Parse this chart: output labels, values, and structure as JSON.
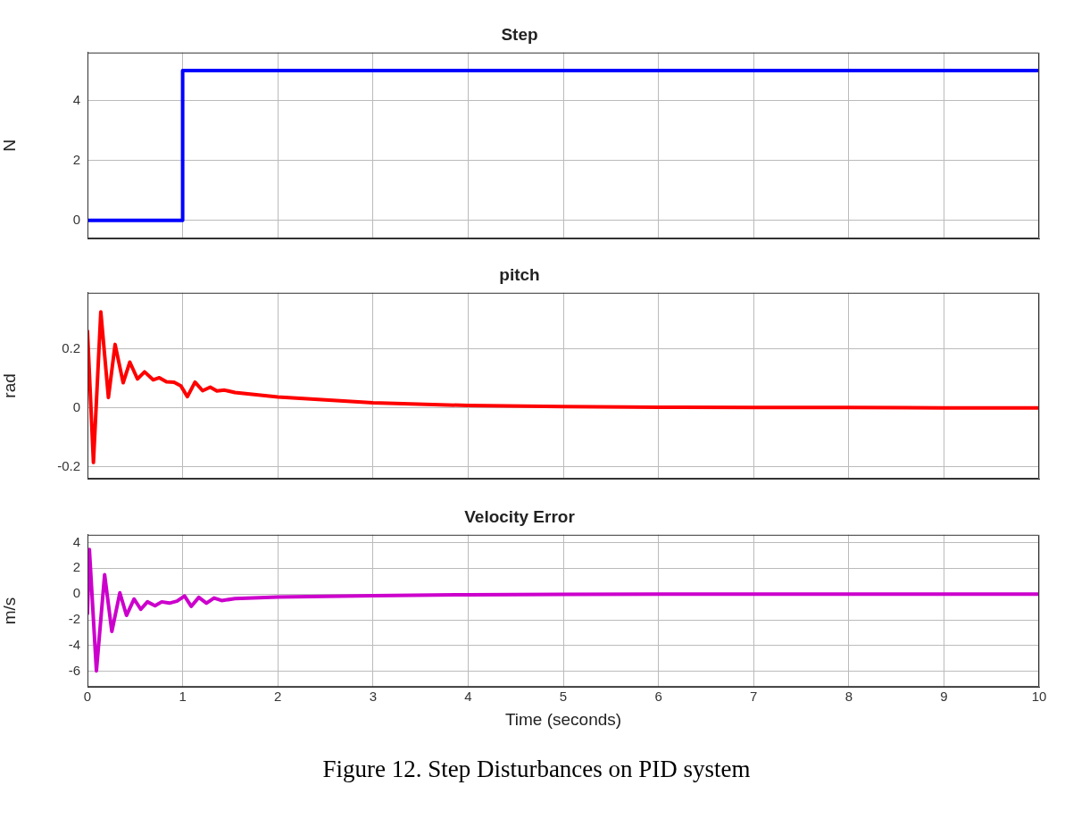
{
  "chart_data": [
    {
      "type": "step",
      "title": "Step",
      "ylabel": "N",
      "xlim": [
        0,
        10
      ],
      "xticks": [
        0,
        1,
        2,
        3,
        4,
        5,
        6,
        7,
        8,
        9,
        10
      ],
      "ylim": [
        -0.6,
        5.6
      ],
      "yticks": [
        0,
        2,
        4
      ],
      "grid": true,
      "legend": false,
      "tick_labels": "y",
      "series": [
        {
          "color": "#0000ff",
          "x": [
            0,
            1,
            10
          ],
          "values": [
            0,
            5,
            5
          ]
        }
      ]
    },
    {
      "type": "line",
      "title": "pitch",
      "ylabel": "rad",
      "xlim": [
        0,
        10
      ],
      "xticks": [
        0,
        1,
        2,
        3,
        4,
        5,
        6,
        7,
        8,
        9,
        10
      ],
      "ylim": [
        -0.24,
        0.39
      ],
      "yticks": [
        -0.2,
        0,
        0.2
      ],
      "grid": true,
      "legend": false,
      "tick_labels": "y",
      "series": [
        {
          "color": "#ff0000",
          "x": [
            0,
            0.0625,
            0.14,
            0.22,
            0.29,
            0.375,
            0.445,
            0.525,
            0.6,
            0.69,
            0.755,
            0.83,
            0.91,
            0.98,
            1.05,
            1.13,
            1.21,
            1.29,
            1.36,
            1.44,
            1.55,
            2,
            3,
            4,
            5,
            6,
            7,
            8,
            9,
            10
          ],
          "values": [
            0.26,
            -0.185,
            0.325,
            0.035,
            0.215,
            0.085,
            0.155,
            0.098,
            0.122,
            0.095,
            0.102,
            0.088,
            0.087,
            0.075,
            0.038,
            0.087,
            0.058,
            0.07,
            0.057,
            0.06,
            0.052,
            0.037,
            0.017,
            0.008,
            0.004,
            0.002,
            0.001,
            0.001,
            0,
            0
          ]
        }
      ]
    },
    {
      "type": "line",
      "title": "Velocity Error",
      "ylabel": "m/s",
      "xlabel": "Time (seconds)",
      "xlim": [
        0,
        10
      ],
      "xticks": [
        0,
        1,
        2,
        3,
        4,
        5,
        6,
        7,
        8,
        9,
        10
      ],
      "ylim": [
        -7.2,
        4.6
      ],
      "yticks": [
        -6,
        -4,
        -2,
        0,
        2,
        4
      ],
      "grid": true,
      "legend": false,
      "annotations": [
        "Figure 12. Step Disturbances on PID system"
      ],
      "series": [
        {
          "color": "#cc00cc",
          "x": [
            0,
            0.02,
            0.094,
            0.18,
            0.256,
            0.34,
            0.41,
            0.49,
            0.56,
            0.63,
            0.71,
            0.78,
            0.86,
            0.94,
            1.02,
            1.09,
            1.17,
            1.25,
            1.33,
            1.41,
            1.55,
            2,
            3,
            4,
            5,
            6,
            7,
            8,
            9,
            10
          ],
          "values": [
            -1.5,
            3.46,
            -5.95,
            1.5,
            -2.9,
            0.1,
            -1.65,
            -0.38,
            -1.18,
            -0.6,
            -0.9,
            -0.6,
            -0.7,
            -0.55,
            -0.15,
            -0.95,
            -0.25,
            -0.7,
            -0.3,
            -0.5,
            -0.35,
            -0.23,
            -0.12,
            -0.05,
            -0.02,
            0,
            0,
            0,
            0,
            0
          ]
        }
      ]
    }
  ]
}
